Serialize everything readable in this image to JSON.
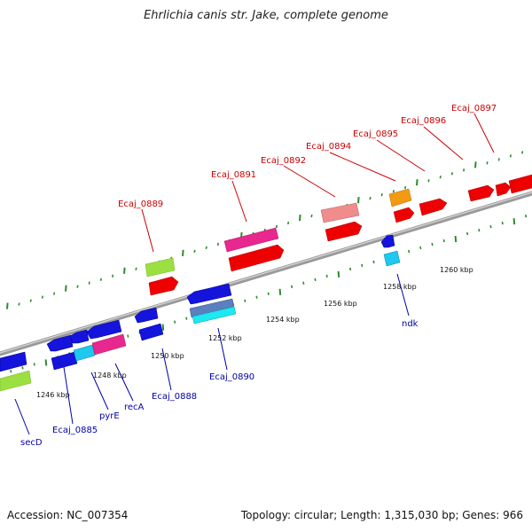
{
  "title": "Ehrlichia canis str. Jake, complete genome",
  "footer": {
    "accession": "Accession: NC_007354",
    "topology": "Topology: circular; Length: 1,315,030 bp; Genes: 966"
  },
  "colors": {
    "axis": "#808080",
    "tick": "#2e8b2e",
    "forward_label": "#cc0000",
    "reverse_label": "#0000aa"
  },
  "axis_labels": [
    "1246 kbp",
    "1248 kbp",
    "1250 kbp",
    "1252 kbp",
    "1254 kbp",
    "1256 kbp",
    "1258 kbp",
    "1260 kbp"
  ],
  "forward_gene_labels": [
    "Ecaj_0889",
    "Ecaj_0891",
    "Ecaj_0892",
    "Ecaj_0894",
    "Ecaj_0895",
    "Ecaj_0896",
    "Ecaj_0897"
  ],
  "reverse_gene_labels": [
    "secD",
    "Ecaj_0885",
    "pyrE",
    "recA",
    "Ecaj_0888",
    "Ecaj_0890",
    "ndk"
  ]
}
